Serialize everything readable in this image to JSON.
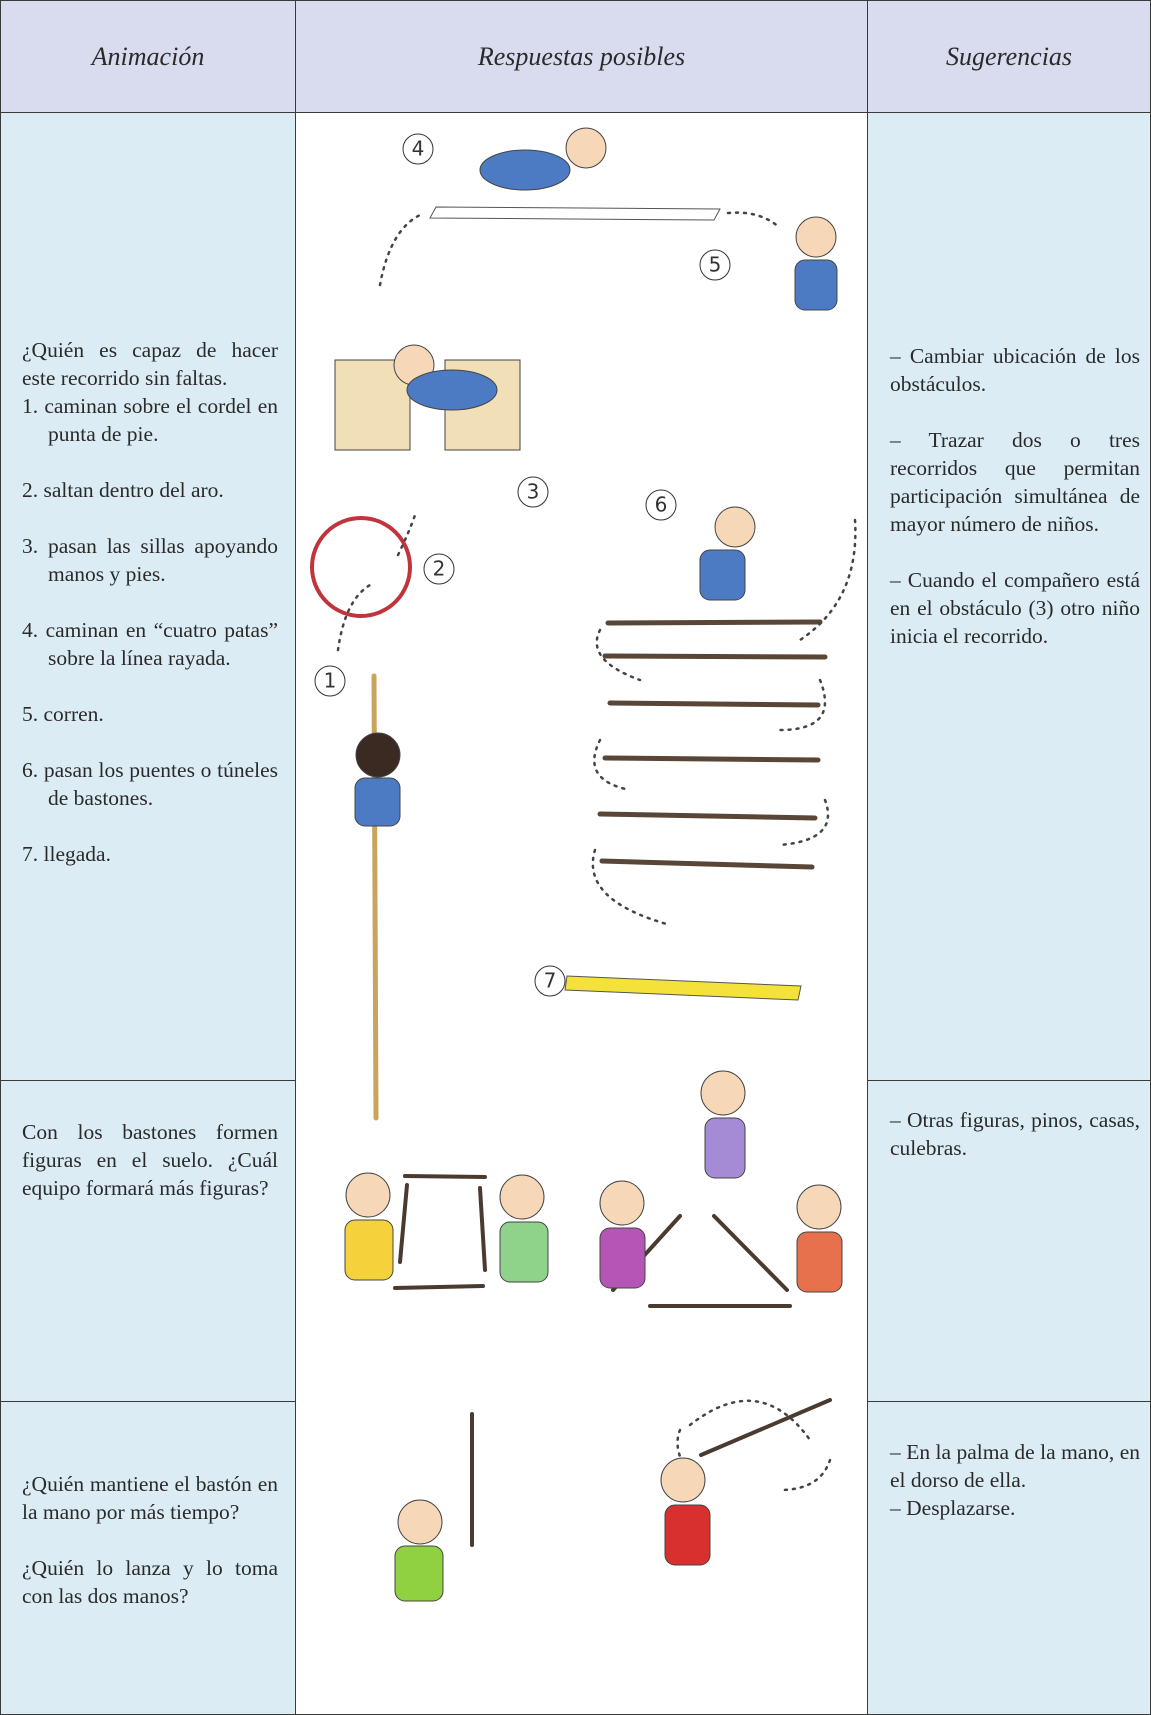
{
  "header": {
    "columns": [
      "Animación",
      "Respuestas posibles",
      "Sugerencias"
    ]
  },
  "rows": [
    {
      "animacion": {
        "intro": "¿Quién es capaz de hacer este recorrido sin faltas.",
        "items": [
          "1. caminan sobre el cordel en punta de pie.",
          "2. saltan dentro del aro.",
          "3. pasan las sillas apoyando manos y pies.",
          "4. caminan en “cuatro patas” sobre la línea rayada.",
          "5. corren.",
          "6. pasan los puentes o túneles de bastones.",
          "7. llegada."
        ]
      },
      "respuestas": {
        "labels": [
          "4",
          "5",
          "3",
          "6",
          "2",
          "1",
          "7"
        ]
      },
      "sugerencias": [
        "– Cambiar ubicación de los obstáculos.",
        "– Trazar dos o tres recorridos que permitan participación simultánea de mayor número de niños.",
        "– Cuando el compañero está en el obstáculo (3) otro niño inicia el recorrido."
      ]
    },
    {
      "animacion": [
        "Con los bastones formen figuras en el suelo. ¿Cuál equipo formará más figuras?"
      ],
      "sugerencias": [
        "– Otras figuras, pinos, casas, culebras."
      ]
    },
    {
      "animacion": [
        "¿Quién mantiene el bastón en la mano por más tiempo?",
        "¿Quién lo lanza y lo toma con las dos manos?"
      ],
      "sugerencias": [
        "– En la palma de la mano, en el dorso de ella.",
        "– Desplazarse."
      ]
    }
  ]
}
